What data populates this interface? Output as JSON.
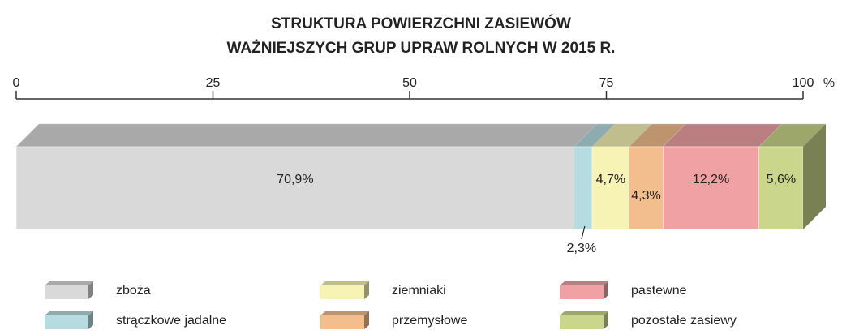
{
  "chart_data": {
    "type": "bar",
    "orientation": "horizontal",
    "stacked": true,
    "title": [
      "STRUKTURA POWIERZCHNI ZASIEWÓW",
      "WAŻNIEJSZYCH GRUP UPRAW ROLNYCH W 2015 R."
    ],
    "xlabel": "%",
    "xlim": [
      0,
      100
    ],
    "xticks": [
      0,
      25,
      50,
      75,
      100
    ],
    "series": [
      {
        "name": "zboża",
        "color": "#d9d9d9",
        "values": [
          70.9
        ],
        "value_labels": [
          "70,9%"
        ]
      },
      {
        "name": "strączkowe jadalne",
        "color": "#b6dbe0",
        "values": [
          2.3
        ],
        "value_labels": [
          "2,3%"
        ]
      },
      {
        "name": "ziemniaki",
        "color": "#f7f3b5",
        "values": [
          4.7
        ],
        "value_labels": [
          "4,7%"
        ]
      },
      {
        "name": "przemysłowe",
        "color": "#f3be8e",
        "values": [
          4.3
        ],
        "value_labels": [
          "4,3%"
        ]
      },
      {
        "name": "pastewne",
        "color": "#f0a1a4",
        "values": [
          12.2
        ],
        "value_labels": [
          "12,2%"
        ]
      },
      {
        "name": "pozostałe zasiewy",
        "color": "#c9d68b",
        "values": [
          5.6
        ],
        "value_labels": [
          "5,6%"
        ]
      }
    ]
  }
}
